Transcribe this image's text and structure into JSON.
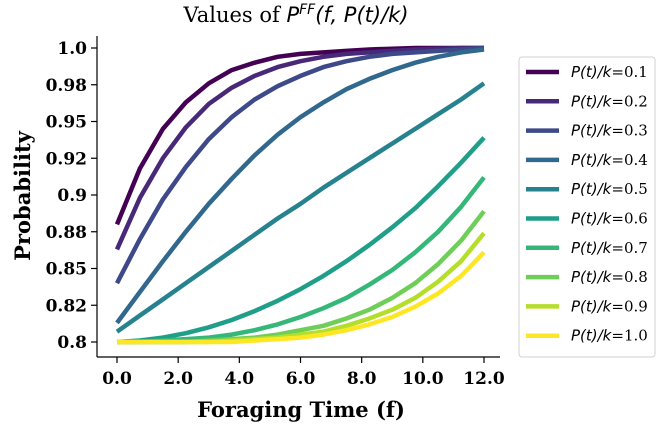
{
  "chart_data": {
    "type": "line",
    "title": "Values of P^FF(f, P(t)/k)",
    "title_parts": {
      "prefix": "Values of ",
      "P": "P",
      "sup": "FF",
      "args": "(f, P(t)/k)"
    },
    "xlabel": "Foraging Time (f)",
    "ylabel": "Probability",
    "xlim": [
      0,
      12
    ],
    "ylim": [
      0.8,
      1.0
    ],
    "x_ticks": [
      "0.0",
      "2.0",
      "4.0",
      "6.0",
      "8.0",
      "10.0",
      "12.0"
    ],
    "y_ticks": [
      "0.8",
      "0.82",
      "0.85",
      "0.88",
      "0.9",
      "0.92",
      "0.95",
      "0.98",
      "1.0"
    ],
    "legend_position": "right",
    "grid": false,
    "x": [
      0,
      0.75,
      1.5,
      2.25,
      3,
      3.75,
      4.5,
      5.25,
      6,
      6.75,
      7.5,
      8.25,
      9,
      9.75,
      10.5,
      11.25,
      12
    ],
    "series": [
      {
        "name": "P(t)/k=0.1",
        "name_main": "P(t)/k",
        "name_value": "=0.1",
        "color": "#440154",
        "values": [
          0.88,
          0.918,
          0.945,
          0.963,
          0.976,
          0.985,
          0.99,
          0.994,
          0.996,
          0.997,
          0.998,
          0.999,
          0.9995,
          1.0,
          1.0,
          1.0,
          1.0
        ]
      },
      {
        "name": "P(t)/k=0.2",
        "name_main": "P(t)/k",
        "name_value": "=0.2",
        "color": "#482878",
        "values": [
          0.863,
          0.898,
          0.925,
          0.946,
          0.962,
          0.973,
          0.981,
          0.987,
          0.991,
          0.994,
          0.996,
          0.997,
          0.998,
          0.999,
          0.9995,
          1.0,
          1.0
        ]
      },
      {
        "name": "P(t)/k=0.3",
        "name_main": "P(t)/k",
        "name_value": "=0.3",
        "color": "#3e4989",
        "values": [
          0.84,
          0.87,
          0.897,
          0.919,
          0.938,
          0.953,
          0.965,
          0.974,
          0.981,
          0.987,
          0.991,
          0.994,
          0.996,
          0.997,
          0.998,
          0.999,
          1.0
        ]
      },
      {
        "name": "P(t)/k=0.4",
        "name_main": "P(t)/k",
        "name_value": "=0.4",
        "color": "#31688e",
        "values": [
          0.813,
          0.834,
          0.855,
          0.875,
          0.894,
          0.911,
          0.927,
          0.941,
          0.953,
          0.963,
          0.972,
          0.979,
          0.985,
          0.99,
          0.994,
          0.997,
          0.999
        ]
      },
      {
        "name": "P(t)/k=0.5",
        "name_main": "P(t)/k",
        "name_value": "=0.5",
        "color": "#26828e",
        "values": [
          0.807,
          0.818,
          0.829,
          0.84,
          0.851,
          0.862,
          0.873,
          0.884,
          0.894,
          0.905,
          0.915,
          0.925,
          0.935,
          0.945,
          0.955,
          0.965,
          0.976
        ]
      },
      {
        "name": "P(t)/k=0.6",
        "name_main": "P(t)/k",
        "name_value": "=0.6",
        "color": "#1f9e89",
        "values": [
          0.8,
          0.801,
          0.803,
          0.806,
          0.81,
          0.815,
          0.821,
          0.828,
          0.836,
          0.845,
          0.855,
          0.866,
          0.878,
          0.891,
          0.906,
          0.922,
          0.939
        ]
      },
      {
        "name": "P(t)/k=0.7",
        "name_main": "P(t)/k",
        "name_value": "=0.7",
        "color": "#35b779",
        "values": [
          0.8,
          0.8,
          0.801,
          0.802,
          0.803,
          0.805,
          0.808,
          0.812,
          0.817,
          0.823,
          0.83,
          0.839,
          0.849,
          0.861,
          0.875,
          0.892,
          0.912
        ]
      },
      {
        "name": "P(t)/k=0.8",
        "name_main": "P(t)/k",
        "name_value": "=0.8",
        "color": "#6ece58",
        "values": [
          0.8,
          0.8,
          0.8,
          0.8,
          0.801,
          0.802,
          0.803,
          0.805,
          0.808,
          0.811,
          0.816,
          0.822,
          0.83,
          0.84,
          0.853,
          0.869,
          0.889
        ]
      },
      {
        "name": "P(t)/k=0.9",
        "name_main": "P(t)/k",
        "name_value": "=0.9",
        "color": "#b5de2b",
        "values": [
          0.8,
          0.8,
          0.8,
          0.8,
          0.8,
          0.801,
          0.802,
          0.803,
          0.805,
          0.807,
          0.811,
          0.816,
          0.822,
          0.83,
          0.841,
          0.855,
          0.874
        ]
      },
      {
        "name": "P(t)/k=1.0",
        "name_main": "P(t)/k",
        "name_value": "=1.0",
        "color": "#fde725",
        "values": [
          0.8,
          0.8,
          0.8,
          0.8,
          0.8,
          0.8,
          0.801,
          0.802,
          0.803,
          0.805,
          0.808,
          0.812,
          0.817,
          0.824,
          0.833,
          0.845,
          0.861
        ]
      }
    ]
  }
}
